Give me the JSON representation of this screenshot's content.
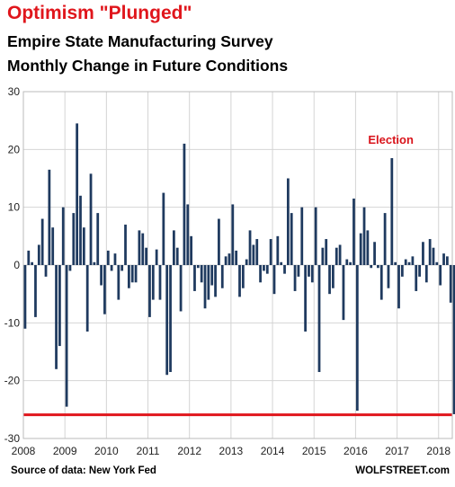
{
  "title": "Optimism \"Plunged\"",
  "subtitle_1": "Empire State Manufacturing Survey",
  "subtitle_2": "Monthly Change in Future Conditions",
  "source": "Source of data: New York Fed",
  "brand": "WOLFSTREET.com",
  "colors": {
    "bars": "#1f3a5f",
    "reference_line": "#e0161c",
    "title": "#e0161c",
    "annotation": "#d9141b"
  },
  "chart_data": {
    "type": "bar",
    "x_start": 2008,
    "x_end": 2018.33,
    "x_ticks": [
      "2008",
      "2009",
      "2010",
      "2011",
      "2012",
      "2013",
      "2014",
      "2015",
      "2016",
      "2017",
      "2018"
    ],
    "y_ticks": [
      "30",
      "20",
      "10",
      "0",
      "-10",
      "-20",
      "-30"
    ],
    "ylim": [
      -30,
      30
    ],
    "grid": true,
    "reference_line": -25.9,
    "annotation": {
      "text": "Election",
      "x": 2016.85,
      "y": 21
    },
    "values": [
      -11,
      2.5,
      0.5,
      -9,
      3.5,
      8,
      -2,
      16.5,
      6.5,
      -18,
      -14,
      10,
      -24.5,
      -1,
      9,
      24.5,
      12,
      6.5,
      -11.5,
      15.8,
      0.5,
      9,
      -3.5,
      -8.5,
      2.5,
      -1,
      2,
      -6,
      -1,
      7,
      -4,
      -3,
      -3,
      6,
      5.5,
      3,
      -9,
      -6,
      2.7,
      -6,
      12.5,
      -19,
      -18.5,
      6,
      3,
      -8,
      21,
      10.5,
      5,
      -4.5,
      -0.5,
      -3,
      -7.5,
      -6,
      -3.5,
      -5.5,
      8,
      -4,
      1.5,
      2,
      10.5,
      2.5,
      -5.5,
      -4,
      1,
      6,
      3.5,
      4.5,
      -3,
      -1,
      -1.5,
      4.5,
      -5,
      5,
      0.5,
      -1.5,
      15,
      9,
      -4.5,
      -2,
      10,
      -11.5,
      -2,
      -3,
      10,
      -18.5,
      3,
      4.5,
      -5,
      -4,
      3,
      3.5,
      -9.5,
      1,
      0.5,
      11.5,
      -25.2,
      5.5,
      10,
      6,
      -0.5,
      4,
      -0.5,
      -6,
      9,
      -4,
      18.5,
      0.5,
      -7.5,
      -2,
      1,
      0.5,
      1.5,
      -4.5,
      -2,
      4,
      -3,
      4.5,
      3,
      0.5,
      -3.5,
      2,
      1.5,
      -6.5,
      -25.8
    ]
  }
}
